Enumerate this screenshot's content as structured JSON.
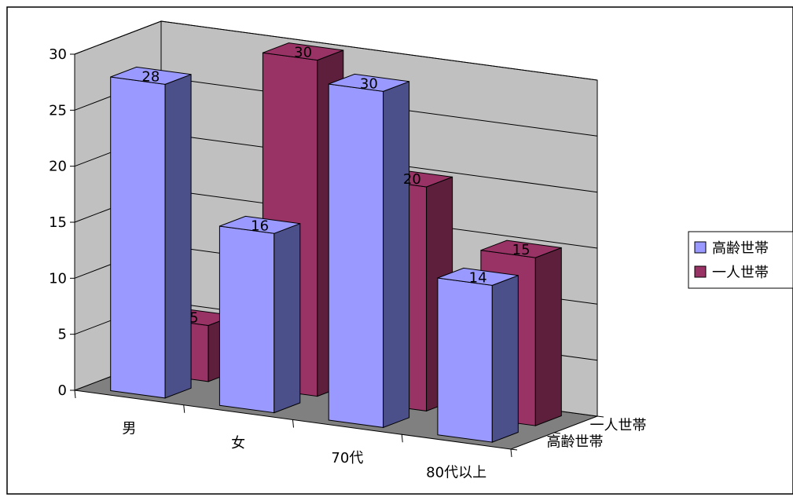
{
  "chart_data": {
    "type": "bar",
    "variant": "3d-column",
    "title": "",
    "xlabel": "",
    "ylabel": "",
    "categories": [
      "男",
      "女",
      "70代",
      "80代以上"
    ],
    "series": [
      {
        "name": "高齢世帯",
        "values": [
          28,
          16,
          30,
          14
        ],
        "color": "#9999FF",
        "side_color": "#4B4F8A"
      },
      {
        "name": "一人世帯",
        "values": [
          5,
          30,
          20,
          15
        ],
        "color": "#993366",
        "side_color": "#5E1F3C"
      }
    ],
    "ylim": [
      0,
      30
    ],
    "yticks": [
      0,
      5,
      10,
      15,
      20,
      25,
      30
    ],
    "grid": true,
    "legend": "right",
    "wall_color": "#C0C0C0",
    "floor_color": "#808080"
  }
}
